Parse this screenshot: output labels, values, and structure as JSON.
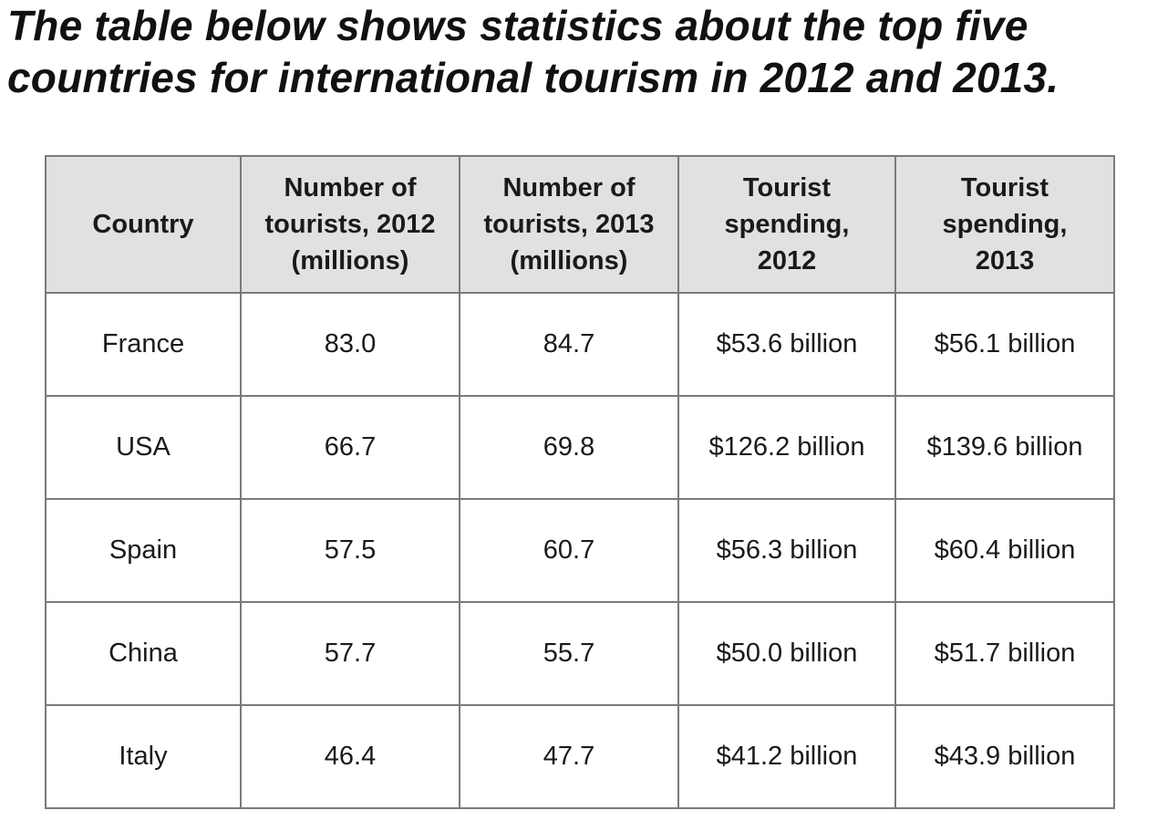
{
  "title": "The table below shows statistics about the top five\ncountries for international tourism in 2012 and 2013.",
  "chart_data": {
    "type": "table",
    "title": "The table below shows statistics about the top five countries for international tourism in 2012 and 2013.",
    "columns": [
      "Country",
      "Number of\ntourists, 2012\n(millions)",
      "Number of\ntourists, 2013\n(millions)",
      "Tourist\nspending,\n2012",
      "Tourist\nspending,\n2013"
    ],
    "rows": [
      [
        "France",
        "83.0",
        "84.7",
        "$53.6 billion",
        "$56.1 billion"
      ],
      [
        "USA",
        "66.7",
        "69.8",
        "$126.2 billion",
        "$139.6 billion"
      ],
      [
        "Spain",
        "57.5",
        "60.7",
        "$56.3 billion",
        "$60.4 billion"
      ],
      [
        "China",
        "57.7",
        "55.7",
        "$50.0 billion",
        "$51.7 billion"
      ],
      [
        "Italy",
        "46.4",
        "47.7",
        "$41.2 billion",
        "$43.9 billion"
      ]
    ]
  }
}
